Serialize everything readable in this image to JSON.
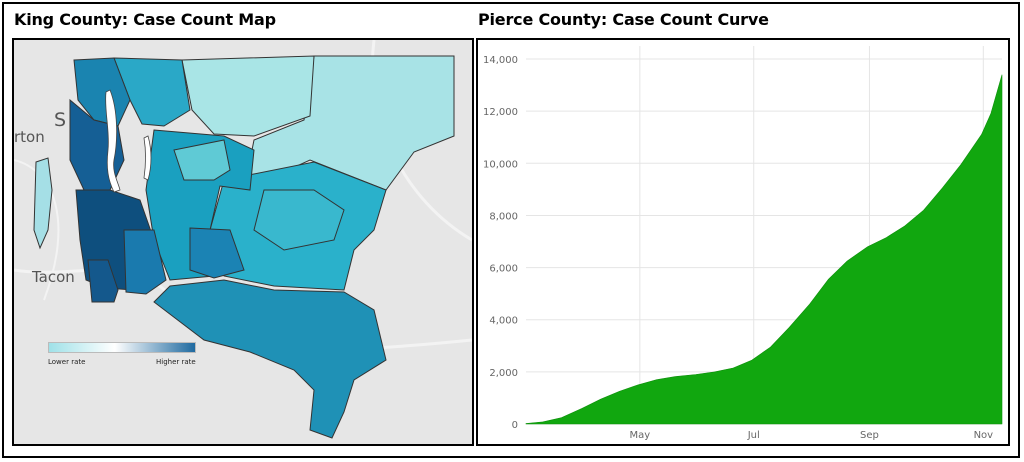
{
  "left_panel": {
    "title": "King County: Case Count Map",
    "legend": {
      "low_label": "Lower rate",
      "high_label": "Higher rate"
    },
    "place_labels": [
      "rton",
      "S",
      "Tacon"
    ],
    "colors": {
      "low": "#a8e3e6",
      "mid": "#2aa6c3",
      "high": "#0e4f7e",
      "water": "#ffffff"
    }
  },
  "right_panel": {
    "title": "Pierce County: Case Count Curve"
  },
  "chart_data": {
    "type": "area",
    "title": "Pierce County: Case Count Curve",
    "xlabel": "",
    "ylabel": "",
    "x_ticks": [
      "May",
      "Jul",
      "Sep",
      "Nov"
    ],
    "x_tick_dates": [
      "2020-05-01",
      "2020-07-01",
      "2020-09-01",
      "2020-11-01"
    ],
    "y_ticks": [
      "0",
      "2,000",
      "4,000",
      "6,000",
      "8,000",
      "10,000",
      "12,000",
      "14,000"
    ],
    "ylim": [
      0,
      14500
    ],
    "xlim": [
      "2020-03-01",
      "2020-11-11"
    ],
    "grid": true,
    "color": "#11a70f",
    "series": [
      {
        "x": [
          "2020-03-01",
          "2020-03-10",
          "2020-03-20",
          "2020-03-31",
          "2020-04-10",
          "2020-04-20",
          "2020-04-30",
          "2020-05-10",
          "2020-05-20",
          "2020-05-31",
          "2020-06-10",
          "2020-06-20",
          "2020-06-30",
          "2020-07-10",
          "2020-07-20",
          "2020-07-31",
          "2020-08-10",
          "2020-08-20",
          "2020-08-31",
          "2020-09-10",
          "2020-09-20",
          "2020-09-30",
          "2020-10-10",
          "2020-10-20",
          "2020-10-31",
          "2020-11-05",
          "2020-11-11"
        ],
        "values": [
          20,
          80,
          240,
          600,
          950,
          1250,
          1500,
          1700,
          1820,
          1900,
          2000,
          2150,
          2450,
          2950,
          3700,
          4600,
          5550,
          6250,
          6800,
          7150,
          7600,
          8200,
          9050,
          9950,
          11100,
          11900,
          13400
        ]
      }
    ]
  }
}
